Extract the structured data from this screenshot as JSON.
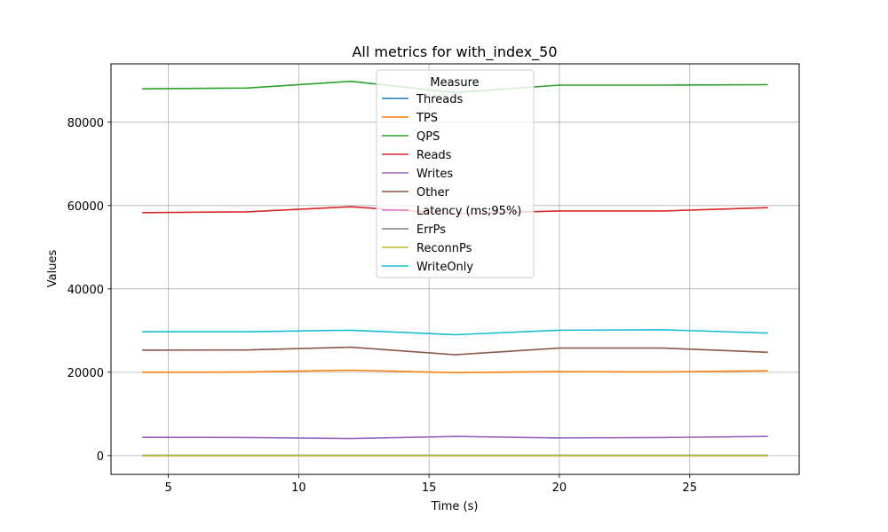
{
  "chart_data": {
    "type": "line",
    "title": "All metrics for with_index_50",
    "xlabel": "Time (s)",
    "ylabel": "Values",
    "xlim": [
      2.8,
      29.2
    ],
    "ylim": [
      -4500,
      94000
    ],
    "xticks": [
      5,
      10,
      15,
      20,
      25
    ],
    "yticks": [
      0,
      20000,
      40000,
      60000,
      80000
    ],
    "grid": true,
    "legend_title": "Measure",
    "legend_position": "upper center",
    "x": [
      4,
      8,
      12,
      16,
      20,
      24,
      28
    ],
    "series": [
      {
        "name": "Threads",
        "color": "#1f77b4",
        "values": [
          50,
          50,
          50,
          50,
          50,
          50,
          50
        ]
      },
      {
        "name": "TPS",
        "color": "#ff7f0e",
        "values": [
          20000,
          20050,
          20500,
          19900,
          20150,
          20100,
          20350
        ]
      },
      {
        "name": "QPS",
        "color": "#2ca02c",
        "values": [
          88000,
          88200,
          89800,
          87100,
          88900,
          88900,
          89000
        ]
      },
      {
        "name": "Reads",
        "color": "#d62728",
        "values": [
          58300,
          58500,
          59700,
          58000,
          58700,
          58700,
          59500
        ]
      },
      {
        "name": "Writes",
        "color": "#9467bd",
        "values": [
          4400,
          4350,
          4100,
          4600,
          4250,
          4350,
          4600
        ]
      },
      {
        "name": "Other",
        "color": "#8c564b",
        "values": [
          25300,
          25350,
          26000,
          24200,
          25800,
          25800,
          24800
        ]
      },
      {
        "name": "Latency (ms;95%)",
        "color": "#e377c2",
        "values": [
          10,
          10,
          10,
          10,
          10,
          10,
          10
        ]
      },
      {
        "name": "ErrPs",
        "color": "#7f7f7f",
        "values": [
          0,
          0,
          0,
          0,
          0,
          0,
          0
        ]
      },
      {
        "name": "ReconnPs",
        "color": "#bcbd22",
        "values": [
          0,
          0,
          0,
          0,
          0,
          0,
          0
        ]
      },
      {
        "name": "WriteOnly",
        "color": "#17becf",
        "values": [
          29700,
          29700,
          30100,
          29000,
          30100,
          30200,
          29400
        ]
      }
    ]
  }
}
